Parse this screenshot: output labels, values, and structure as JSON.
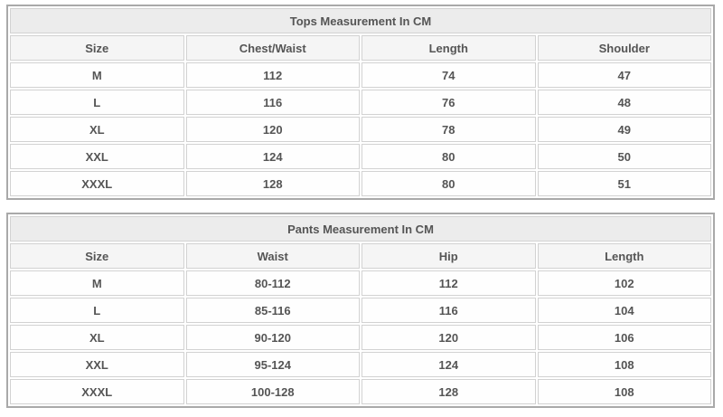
{
  "page": {
    "background": "#ffffff"
  },
  "colors": {
    "outer_border": "#a9a9a9",
    "cell_border": "#d2d2d2",
    "title_row_bg": "#ececec",
    "header_row_bg": "#f5f5f5",
    "data_row_bg": "#fefefe",
    "text": "#555555"
  },
  "tables": [
    {
      "title": "Tops Measurement In CM",
      "columns": [
        "Size",
        "Chest/Waist",
        "Length",
        "Shoulder"
      ],
      "rows": [
        [
          "M",
          "112",
          "74",
          "47"
        ],
        [
          "L",
          "116",
          "76",
          "48"
        ],
        [
          "XL",
          "120",
          "78",
          "49"
        ],
        [
          "XXL",
          "124",
          "80",
          "50"
        ],
        [
          "XXXL",
          "128",
          "80",
          "51"
        ]
      ]
    },
    {
      "title": "Pants Measurement In CM",
      "columns": [
        "Size",
        "Waist",
        "Hip",
        "Length"
      ],
      "rows": [
        [
          "M",
          "80-112",
          "112",
          "102"
        ],
        [
          "L",
          "85-116",
          "116",
          "104"
        ],
        [
          "XL",
          "90-120",
          "120",
          "106"
        ],
        [
          "XXL",
          "95-124",
          "124",
          "108"
        ],
        [
          "XXXL",
          "100-128",
          "128",
          "108"
        ]
      ]
    }
  ]
}
